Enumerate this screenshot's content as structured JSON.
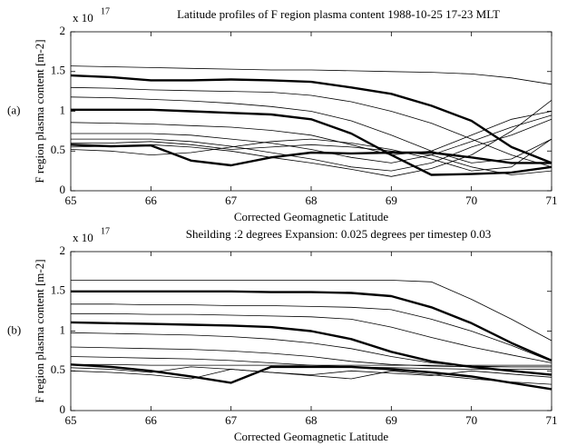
{
  "chart_data": [
    {
      "type": "line",
      "panel_label": "(a)",
      "title": "Latitude profiles of F region plasma content 1988-10-25 17-23 MLT",
      "y_multiplier": {
        "base": "x 10",
        "exponent": "17"
      },
      "xlabel": "Corrected Geomagnetic Latitude",
      "ylabel": "F region plasma content [m-2]",
      "x": [
        65,
        65.5,
        66,
        66.5,
        67,
        67.5,
        68,
        68.5,
        69,
        69.5,
        70,
        70.5,
        71
      ],
      "xlim": [
        65,
        71
      ],
      "xticks": [
        65,
        66,
        67,
        68,
        69,
        70,
        71
      ],
      "ylim": [
        0,
        2
      ],
      "yticks": [
        0,
        0.5,
        1,
        1.5,
        2
      ],
      "series": [
        {
          "color": "#000",
          "linewidth": 2.4,
          "values": [
            1.45,
            1.43,
            1.39,
            1.39,
            1.4,
            1.39,
            1.37,
            1.3,
            1.22,
            1.07,
            0.88,
            0.55,
            0.35
          ]
        },
        {
          "color": "#000",
          "linewidth": 2.4,
          "values": [
            1.02,
            1.02,
            1.02,
            1.0,
            0.98,
            0.96,
            0.9,
            0.72,
            0.45,
            0.2,
            0.21,
            0.23,
            0.3
          ]
        },
        {
          "color": "#000",
          "linewidth": 2.4,
          "values": [
            0.58,
            0.56,
            0.57,
            0.38,
            0.32,
            0.42,
            0.48,
            0.47,
            0.48,
            0.48,
            0.42,
            0.35,
            0.35
          ]
        },
        {
          "color": "#000",
          "linewidth": 0.8,
          "values": [
            1.57,
            1.56,
            1.55,
            1.54,
            1.53,
            1.52,
            1.52,
            1.51,
            1.5,
            1.49,
            1.47,
            1.42,
            1.34
          ]
        },
        {
          "color": "#000",
          "linewidth": 0.8,
          "values": [
            1.3,
            1.29,
            1.27,
            1.26,
            1.25,
            1.24,
            1.2,
            1.12,
            1.0,
            0.85,
            0.65,
            0.45,
            0.3
          ]
        },
        {
          "color": "#000",
          "linewidth": 0.8,
          "values": [
            1.18,
            1.17,
            1.15,
            1.13,
            1.1,
            1.06,
            1.0,
            0.88,
            0.7,
            0.5,
            0.35,
            0.4,
            0.65
          ]
        },
        {
          "color": "#000",
          "linewidth": 0.8,
          "values": [
            0.86,
            0.85,
            0.84,
            0.82,
            0.8,
            0.76,
            0.7,
            0.58,
            0.45,
            0.5,
            0.7,
            0.9,
            1.0
          ]
        },
        {
          "color": "#000",
          "linewidth": 0.8,
          "values": [
            0.72,
            0.72,
            0.72,
            0.7,
            0.65,
            0.6,
            0.52,
            0.42,
            0.35,
            0.45,
            0.62,
            0.8,
            0.95
          ]
        },
        {
          "color": "#000",
          "linewidth": 0.8,
          "values": [
            0.65,
            0.65,
            0.65,
            0.62,
            0.56,
            0.48,
            0.4,
            0.3,
            0.25,
            0.35,
            0.55,
            0.7,
            0.9
          ]
        },
        {
          "color": "#000",
          "linewidth": 0.8,
          "values": [
            0.55,
            0.56,
            0.58,
            0.55,
            0.5,
            0.42,
            0.35,
            0.27,
            0.18,
            0.28,
            0.45,
            0.75,
            1.14
          ]
        },
        {
          "color": "#000",
          "linewidth": 0.8,
          "values": [
            0.52,
            0.5,
            0.45,
            0.48,
            0.55,
            0.62,
            0.65,
            0.6,
            0.52,
            0.4,
            0.25,
            0.3,
            0.65
          ]
        },
        {
          "color": "#000",
          "linewidth": 0.8,
          "values": [
            0.6,
            0.6,
            0.62,
            0.58,
            0.52,
            0.55,
            0.58,
            0.55,
            0.5,
            0.45,
            0.3,
            0.2,
            0.25
          ]
        }
      ]
    },
    {
      "type": "line",
      "panel_label": "(b)",
      "title": "Sheilding :2 degrees   Expansion: 0.025 degrees per timestep 0.03",
      "y_multiplier": {
        "base": "x 10",
        "exponent": "17"
      },
      "xlabel": "Corrected Geomagnetic Latitude",
      "ylabel": "F region plasma content [m-2]",
      "x": [
        65,
        65.5,
        66,
        66.5,
        67,
        67.5,
        68,
        68.5,
        69,
        69.5,
        70,
        70.5,
        71
      ],
      "xlim": [
        65,
        71
      ],
      "xticks": [
        65,
        66,
        67,
        68,
        69,
        70,
        71
      ],
      "ylim": [
        0,
        2
      ],
      "yticks": [
        0,
        0.5,
        1,
        1.5,
        2
      ],
      "series": [
        {
          "color": "#000",
          "linewidth": 2.4,
          "values": [
            1.5,
            1.5,
            1.5,
            1.5,
            1.5,
            1.49,
            1.49,
            1.48,
            1.44,
            1.3,
            1.1,
            0.85,
            0.63
          ]
        },
        {
          "color": "#000",
          "linewidth": 2.4,
          "values": [
            1.11,
            1.1,
            1.09,
            1.08,
            1.07,
            1.05,
            1.0,
            0.9,
            0.74,
            0.62,
            0.55,
            0.5,
            0.45
          ]
        },
        {
          "color": "#000",
          "linewidth": 2.4,
          "values": [
            0.58,
            0.55,
            0.5,
            0.43,
            0.35,
            0.55,
            0.55,
            0.55,
            0.52,
            0.48,
            0.43,
            0.35,
            0.27
          ]
        },
        {
          "color": "#000",
          "linewidth": 0.8,
          "values": [
            1.64,
            1.64,
            1.64,
            1.64,
            1.64,
            1.64,
            1.64,
            1.64,
            1.64,
            1.62,
            1.4,
            1.15,
            0.88
          ]
        },
        {
          "color": "#000",
          "linewidth": 0.8,
          "values": [
            1.34,
            1.34,
            1.33,
            1.33,
            1.32,
            1.32,
            1.31,
            1.3,
            1.27,
            1.15,
            1.0,
            0.82,
            0.62
          ]
        },
        {
          "color": "#000",
          "linewidth": 0.8,
          "values": [
            1.22,
            1.22,
            1.21,
            1.21,
            1.2,
            1.19,
            1.18,
            1.15,
            1.05,
            0.92,
            0.8,
            0.7,
            0.6
          ]
        },
        {
          "color": "#000",
          "linewidth": 0.8,
          "values": [
            0.98,
            0.97,
            0.96,
            0.95,
            0.93,
            0.9,
            0.85,
            0.78,
            0.68,
            0.6,
            0.56,
            0.55,
            0.55
          ]
        },
        {
          "color": "#000",
          "linewidth": 0.8,
          "values": [
            0.8,
            0.79,
            0.78,
            0.77,
            0.75,
            0.72,
            0.68,
            0.62,
            0.58,
            0.56,
            0.55,
            0.55,
            0.55
          ]
        },
        {
          "color": "#000",
          "linewidth": 0.8,
          "values": [
            0.68,
            0.67,
            0.66,
            0.65,
            0.63,
            0.6,
            0.57,
            0.55,
            0.54,
            0.53,
            0.52,
            0.52,
            0.52
          ]
        },
        {
          "color": "#000",
          "linewidth": 0.8,
          "values": [
            0.58,
            0.58,
            0.57,
            0.57,
            0.57,
            0.57,
            0.57,
            0.57,
            0.57,
            0.57,
            0.57,
            0.57,
            0.57
          ]
        },
        {
          "color": "#000",
          "linewidth": 0.8,
          "values": [
            0.54,
            0.52,
            0.48,
            0.55,
            0.52,
            0.48,
            0.45,
            0.5,
            0.47,
            0.44,
            0.5,
            0.46,
            0.42
          ]
        },
        {
          "color": "#000",
          "linewidth": 0.8,
          "values": [
            0.5,
            0.48,
            0.45,
            0.4,
            0.52,
            0.48,
            0.44,
            0.4,
            0.5,
            0.45,
            0.4,
            0.36,
            0.33
          ]
        }
      ]
    }
  ]
}
